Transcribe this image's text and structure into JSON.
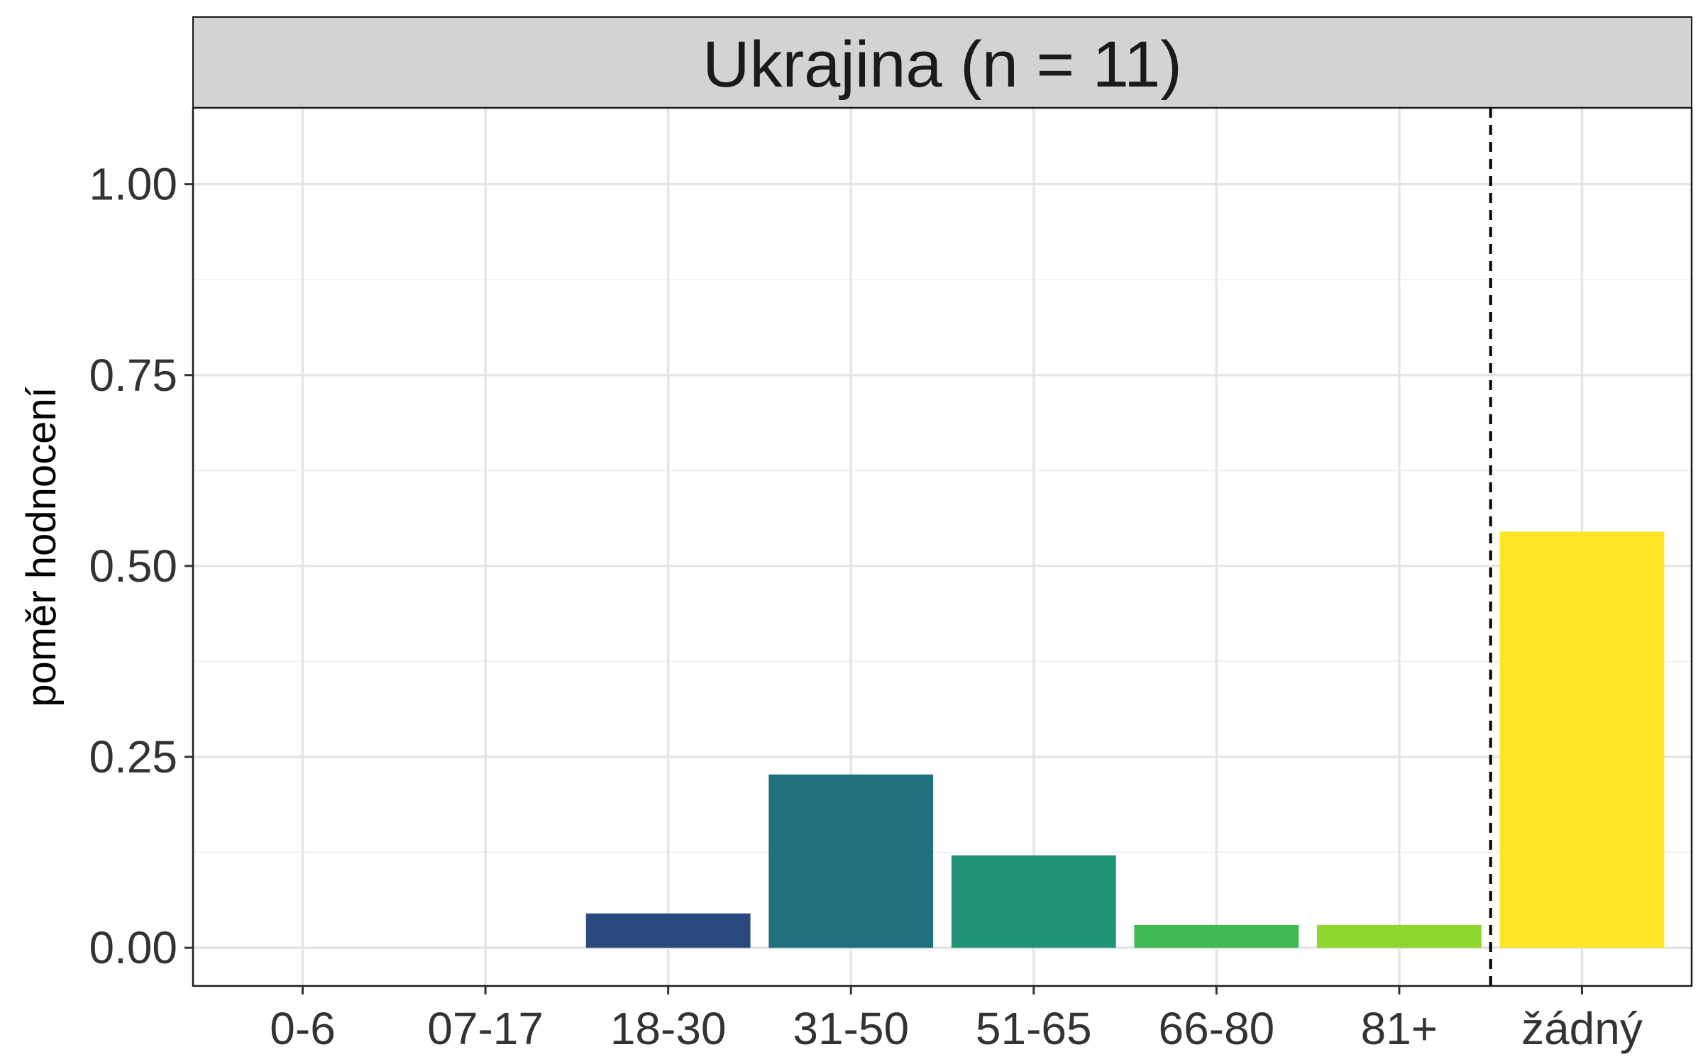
{
  "chart_data": {
    "type": "bar",
    "facet_title": "Ukrajina (n = 11)",
    "ylabel": "poměr hodnocení",
    "xlabel": "",
    "categories": [
      "0-6",
      "07-17",
      "18-30",
      "31-50",
      "51-65",
      "66-80",
      "81+",
      "žádný"
    ],
    "values": [
      0,
      0,
      0.045,
      0.227,
      0.121,
      0.03,
      0.03,
      0.545
    ],
    "colors": [
      "#440154",
      "#46327e",
      "#2a4a7f",
      "#21707e",
      "#219476",
      "#3fba55",
      "#8fd62e",
      "#fde725"
    ],
    "yticks": [
      0,
      0.25,
      0.5,
      0.75,
      1.0
    ],
    "ytick_labels": [
      "0.00",
      "0.25",
      "0.50",
      "0.75",
      "1.00"
    ],
    "ylim": [
      -0.05,
      1.1
    ],
    "grid": true,
    "reference_line": {
      "between": [
        "81+",
        "žádný"
      ],
      "style": "dashed"
    },
    "legend": "none",
    "panel_strip_color": "#d3d3d3"
  }
}
